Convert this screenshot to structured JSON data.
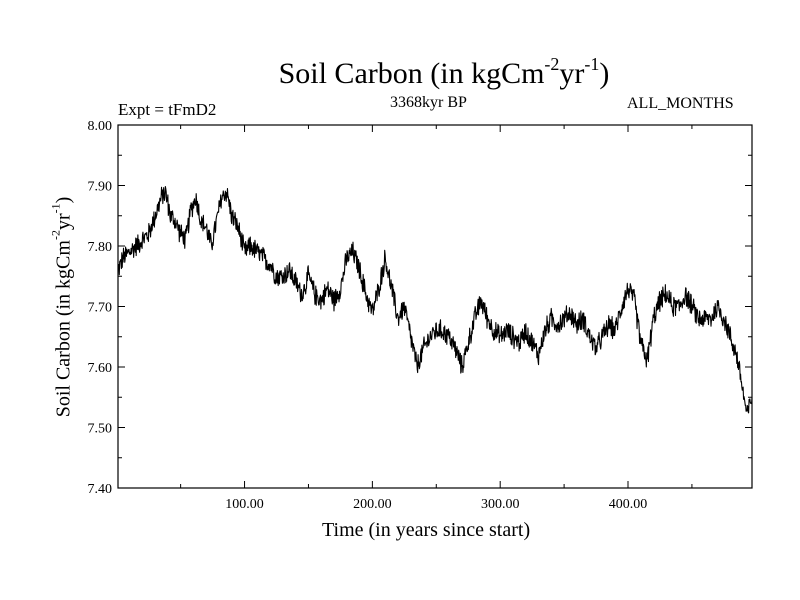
{
  "chart_data": {
    "type": "line",
    "title_main": "Soil Carbon (in kgCm",
    "title_exp1": "-2",
    "title_mid": "yr",
    "title_exp2": "-1",
    "title_end": ")",
    "subtitle": "3368kyr BP",
    "experiment": "Expt = tFmD2",
    "months": "ALL_MONTHS",
    "xlabel": "Time (in years since start)",
    "ylabel_main": "Soil Carbon (in kgCm",
    "ylabel_exp1": "-2",
    "ylabel_mid": "yr",
    "ylabel_exp2": "-1",
    "ylabel_end": ")",
    "xlim": [
      1,
      497
    ],
    "ylim": [
      7.4,
      8.0
    ],
    "xticks": [
      100,
      200,
      300,
      400
    ],
    "xtick_labels": [
      "100.00",
      "200.00",
      "300.00",
      "400.00"
    ],
    "yticks": [
      7.4,
      7.5,
      7.6,
      7.7,
      7.8,
      7.9,
      8.0
    ],
    "ytick_labels": [
      "7.40",
      "7.50",
      "7.60",
      "7.70",
      "7.80",
      "7.90",
      "8.00"
    ],
    "noise_amplitude": 0.02,
    "series": [
      {
        "name": "Soil Carbon",
        "color": "#000000",
        "x": [
          1,
          5,
          10,
          15,
          20,
          25,
          30,
          35,
          38,
          42,
          46,
          50,
          54,
          58,
          62,
          66,
          70,
          74,
          78,
          82,
          86,
          90,
          95,
          100,
          105,
          110,
          115,
          120,
          125,
          130,
          135,
          140,
          145,
          150,
          155,
          160,
          165,
          170,
          175,
          180,
          185,
          190,
          195,
          200,
          205,
          210,
          215,
          220,
          225,
          230,
          235,
          240,
          245,
          250,
          255,
          260,
          265,
          270,
          275,
          280,
          285,
          290,
          295,
          300,
          305,
          310,
          315,
          320,
          325,
          330,
          335,
          340,
          345,
          350,
          355,
          360,
          365,
          370,
          375,
          380,
          385,
          390,
          395,
          400,
          405,
          410,
          415,
          420,
          425,
          430,
          435,
          440,
          445,
          450,
          455,
          460,
          465,
          470,
          475,
          480,
          485,
          490,
          493,
          497
        ],
        "y": [
          7.76,
          7.78,
          7.79,
          7.8,
          7.81,
          7.82,
          7.85,
          7.88,
          7.89,
          7.85,
          7.84,
          7.82,
          7.81,
          7.86,
          7.88,
          7.84,
          7.83,
          7.8,
          7.84,
          7.88,
          7.89,
          7.85,
          7.83,
          7.79,
          7.8,
          7.79,
          7.78,
          7.77,
          7.75,
          7.75,
          7.76,
          7.74,
          7.72,
          7.75,
          7.72,
          7.71,
          7.73,
          7.71,
          7.73,
          7.78,
          7.79,
          7.76,
          7.72,
          7.69,
          7.73,
          7.78,
          7.73,
          7.68,
          7.7,
          7.65,
          7.6,
          7.63,
          7.65,
          7.66,
          7.66,
          7.65,
          7.63,
          7.6,
          7.64,
          7.68,
          7.71,
          7.68,
          7.66,
          7.65,
          7.66,
          7.65,
          7.64,
          7.66,
          7.64,
          7.62,
          7.66,
          7.68,
          7.67,
          7.68,
          7.69,
          7.67,
          7.68,
          7.65,
          7.63,
          7.65,
          7.67,
          7.66,
          7.7,
          7.73,
          7.71,
          7.64,
          7.61,
          7.68,
          7.71,
          7.72,
          7.7,
          7.7,
          7.72,
          7.7,
          7.68,
          7.68,
          7.68,
          7.7,
          7.68,
          7.65,
          7.62,
          7.56,
          7.52,
          7.55
        ]
      }
    ]
  }
}
